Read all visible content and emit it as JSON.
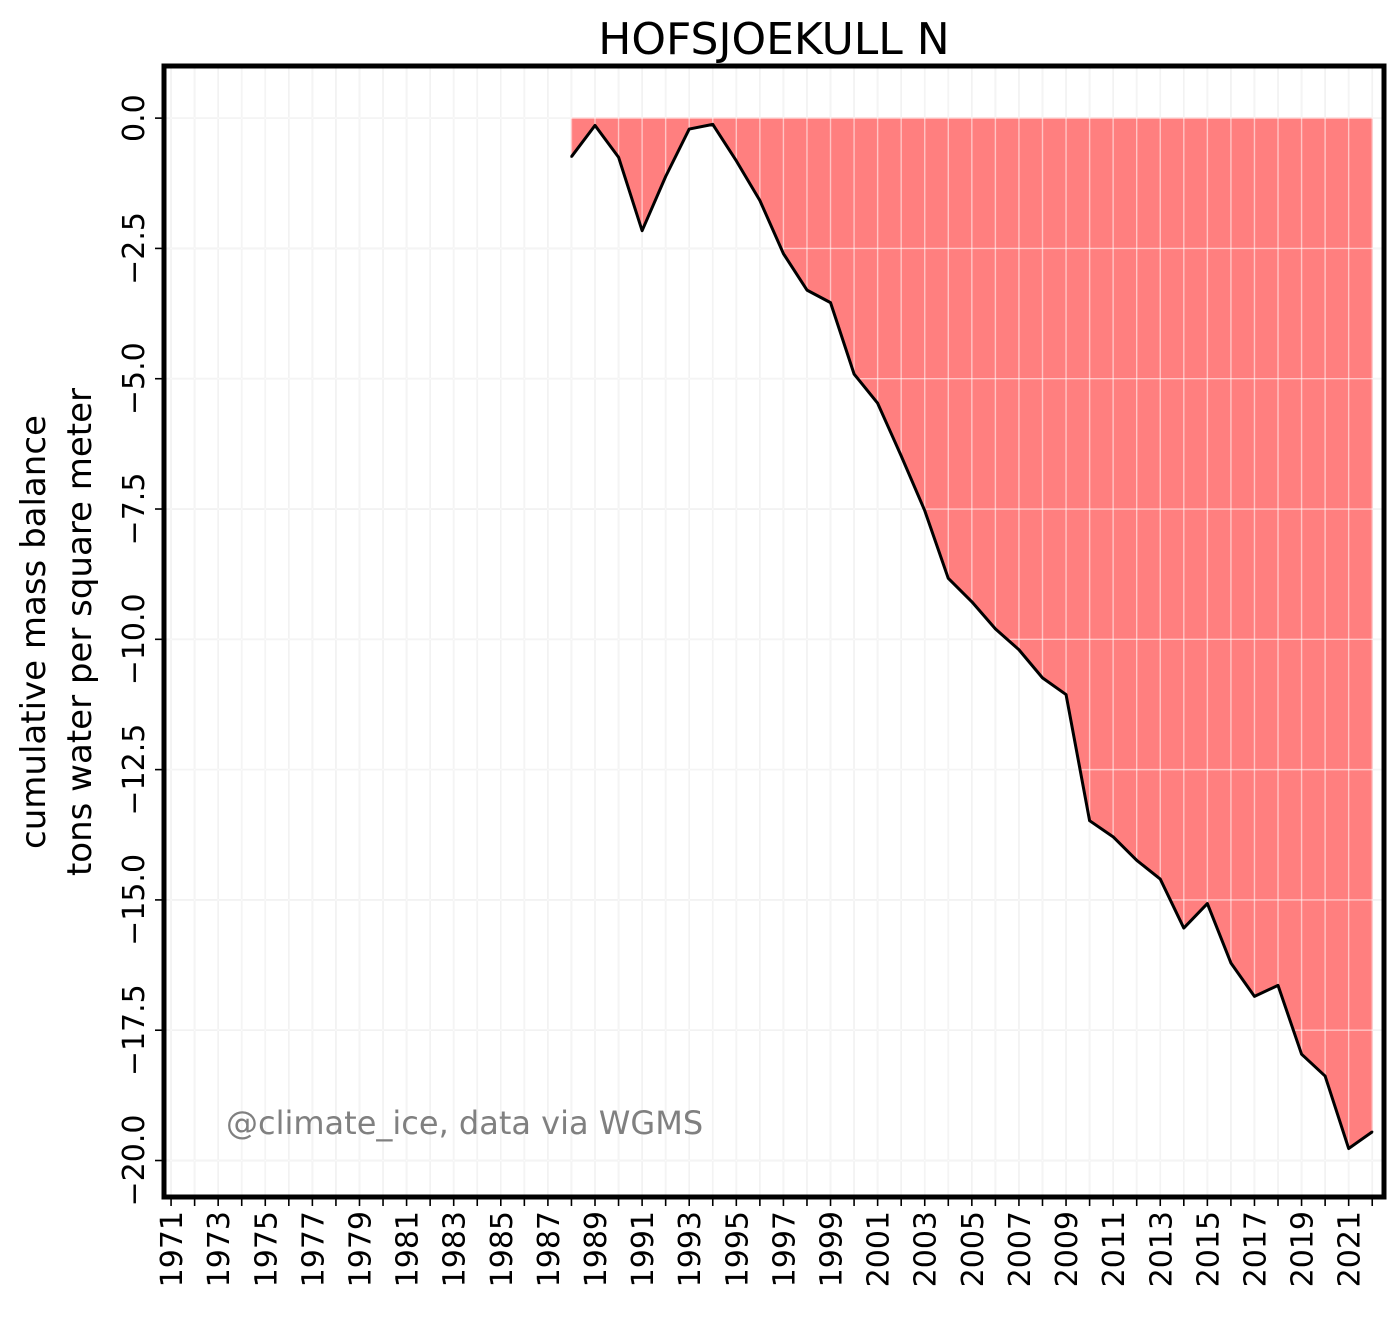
{
  "chart_data": {
    "type": "area",
    "title": "HOFSJOEKULL N",
    "ylabel_line1": "cumulative mass balance",
    "ylabel_line2": "tons water per square meter",
    "xlabel": "",
    "annotation": "@climate_ice, data via WGMS",
    "xlim": [
      1970.7,
      1982.0
    ],
    "x_range": [
      1970.7,
      2022.5
    ],
    "ylim": [
      -20.7,
      1.0
    ],
    "x_ticks": [
      "1971",
      "1973",
      "1975",
      "1977",
      "1979",
      "1981",
      "1983",
      "1985",
      "1987",
      "1989",
      "1991",
      "1993",
      "1995",
      "1997",
      "1999",
      "2001",
      "2003",
      "2005",
      "2007",
      "2009",
      "2011",
      "2013",
      "2015",
      "2017",
      "2019",
      "2021"
    ],
    "y_ticks": [
      "0.0",
      "−2.5",
      "−5.0",
      "−7.5",
      "−10.0",
      "−12.5",
      "−15.0",
      "−17.5",
      "−20.0"
    ],
    "y_tick_values": [
      0,
      -2.5,
      -5,
      -7.5,
      -10,
      -12.5,
      -15,
      -17.5,
      -20
    ],
    "grid": true,
    "fill_color": "#ff7f7f",
    "line_color": "#000000",
    "annotation_color": "#808080",
    "series": [
      {
        "x": [
          1988,
          1989,
          1990,
          1991,
          1992,
          1993,
          1994,
          1995,
          1996,
          1997,
          1998,
          1999,
          2000,
          2001,
          2002,
          2003,
          2004,
          2005,
          2006,
          2007,
          2008,
          2009,
          2010,
          2011,
          2012,
          2013,
          2014,
          2015,
          2016,
          2017,
          2018,
          2019,
          2020,
          2021,
          2022
        ],
        "y": [
          -0.74,
          -0.14,
          -0.75,
          -2.16,
          -1.12,
          -0.21,
          -0.12,
          -0.82,
          -1.58,
          -2.6,
          -3.3,
          -3.54,
          -4.91,
          -5.47,
          -6.48,
          -7.53,
          -8.83,
          -9.28,
          -9.8,
          -10.2,
          -10.74,
          -11.06,
          -13.48,
          -13.79,
          -14.24,
          -14.6,
          -15.54,
          -15.07,
          -16.21,
          -16.85,
          -16.64,
          -17.96,
          -18.38,
          -19.77,
          -19.45
        ]
      }
    ]
  }
}
